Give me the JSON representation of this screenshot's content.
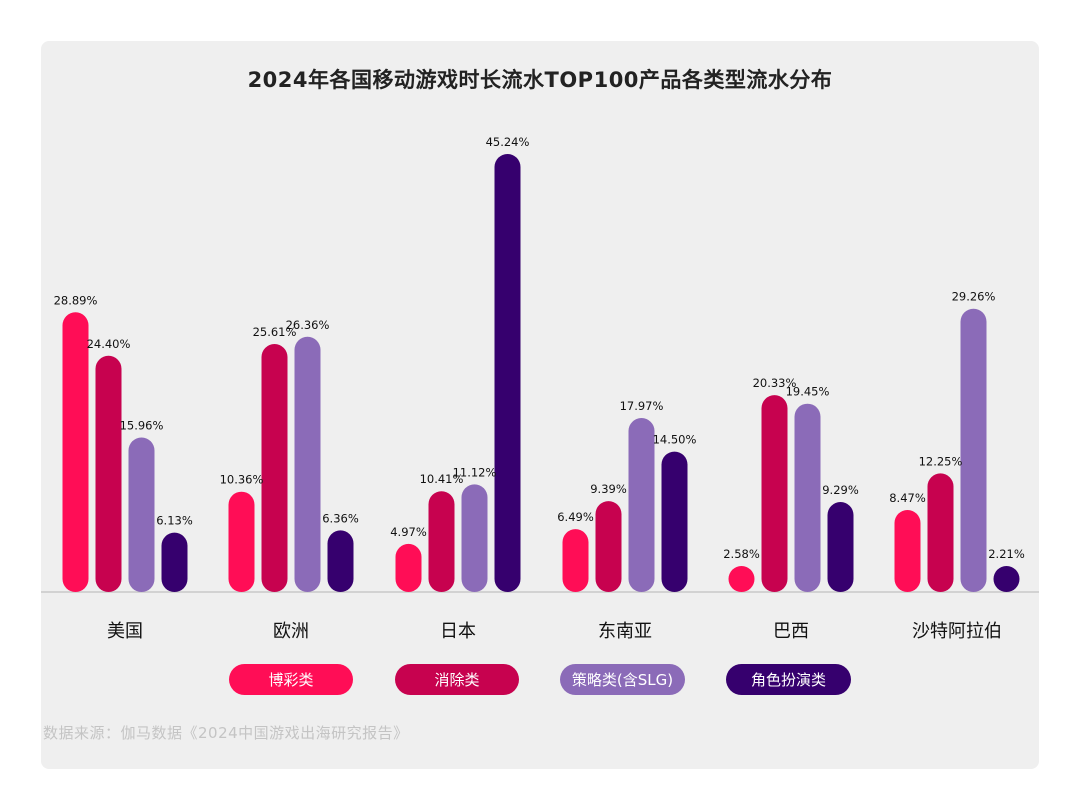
{
  "chart_data": {
    "type": "bar",
    "title": "2024年各国移动游戏时长流水TOP100产品各类型流水分布",
    "categories": [
      "美国",
      "欧洲",
      "日本",
      "东南亚",
      "巴西",
      "沙特阿拉伯"
    ],
    "series": [
      {
        "name": "博彩类",
        "color": "#ff0d56",
        "values": [
          28.89,
          10.36,
          4.97,
          6.49,
          2.58,
          8.47
        ],
        "labels": [
          "28.89%",
          "10.36%",
          "4.97%",
          "6.49%",
          "2.58%",
          "8.47%"
        ]
      },
      {
        "name": "消除类",
        "color": "#c7024f",
        "values": [
          24.4,
          25.61,
          10.41,
          9.39,
          20.33,
          12.25
        ],
        "labels": [
          "24.40%",
          "25.61%",
          "10.41%",
          "9.39%",
          "20.33%",
          "12.25%"
        ]
      },
      {
        "name": "策略类(含SLG)",
        "color": "#8b6bb8",
        "values": [
          15.96,
          26.36,
          11.12,
          17.97,
          19.45,
          29.26
        ],
        "labels": [
          "15.96%",
          "26.36%",
          "11.12%",
          "17.97%",
          "19.45%",
          "29.26%"
        ]
      },
      {
        "name": "角色扮演类",
        "color": "#36006e",
        "values": [
          6.13,
          6.36,
          45.24,
          14.5,
          9.29,
          2.21
        ],
        "labels": [
          "6.13%",
          "6.36%",
          "45.24%",
          "14.50%",
          "9.29%",
          "2.21%"
        ]
      }
    ],
    "ylim": [
      0,
      45.24
    ],
    "grid": false,
    "legend_position": "bottom"
  },
  "source": "数据来源：伽马数据《2024中国游戏出海研究报告》"
}
